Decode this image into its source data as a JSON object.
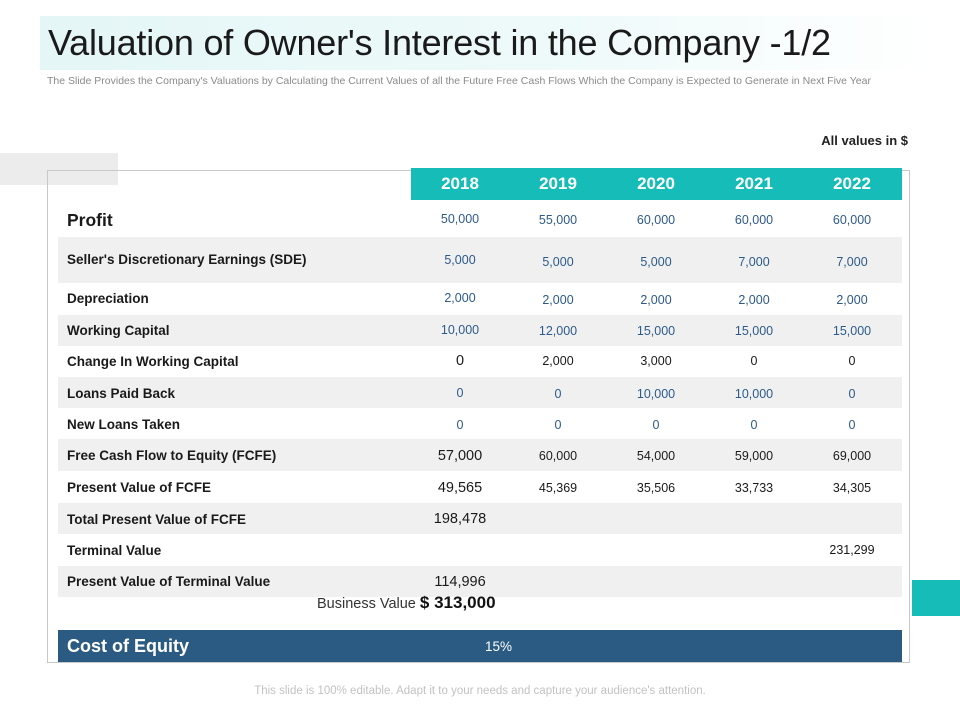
{
  "title": "Valuation of Owner's Interest in the Company -1/2",
  "subtitle": "The Slide Provides the Company's Valuations by Calculating the Current Values of all the Future Free Cash Flows Which the Company is Expected to Generate in Next Five Year",
  "units_note": "All values in $",
  "years": [
    "2018",
    "2019",
    "2020",
    "2021",
    "2022"
  ],
  "rows": [
    {
      "label": "Profit",
      "values": [
        "50,000",
        "55,000",
        "60,000",
        "60,000",
        "60,000"
      ]
    },
    {
      "label": "Seller's Discretionary Earnings (SDE)",
      "values": [
        "5,000",
        "5,000",
        "5,000",
        "7,000",
        "7,000"
      ]
    },
    {
      "label": "Depreciation",
      "values": [
        "2,000",
        "2,000",
        "2,000",
        "2,000",
        "2,000"
      ]
    },
    {
      "label": "Working Capital",
      "values": [
        "10,000",
        "12,000",
        "15,000",
        "15,000",
        "15,000"
      ]
    },
    {
      "label": "Change In Working Capital",
      "values": [
        "0",
        "2,000",
        "3,000",
        "0",
        "0"
      ]
    },
    {
      "label": "Loans Paid Back",
      "values": [
        "0",
        "0",
        "10,000",
        "10,000",
        "0"
      ]
    },
    {
      "label": "New Loans Taken",
      "values": [
        "0",
        "0",
        "0",
        "0",
        "0"
      ]
    },
    {
      "label": "Free Cash Flow to Equity (FCFE)",
      "values": [
        "57,000",
        "60,000",
        "54,000",
        "59,000",
        "69,000"
      ]
    },
    {
      "label": "Present Value of FCFE",
      "values": [
        "49,565",
        "45,369",
        "35,506",
        "33,733",
        "34,305"
      ]
    },
    {
      "label": "Total Present Value of FCFE",
      "values": [
        "198,478",
        "",
        "",
        "",
        ""
      ]
    },
    {
      "label": "Terminal Value",
      "values": [
        "",
        "",
        "",
        "",
        "231,299"
      ]
    },
    {
      "label": "Present Value of Terminal Value",
      "values": [
        "114,996",
        "",
        "",
        "",
        ""
      ]
    }
  ],
  "business_value": {
    "label": "Business Value",
    "value": "$ 313,000"
  },
  "cost_of_equity": {
    "label": "Cost of Equity",
    "value": "15%"
  },
  "footer": "This slide is 100% editable. Adapt it to your needs and capture your audience's attention."
}
